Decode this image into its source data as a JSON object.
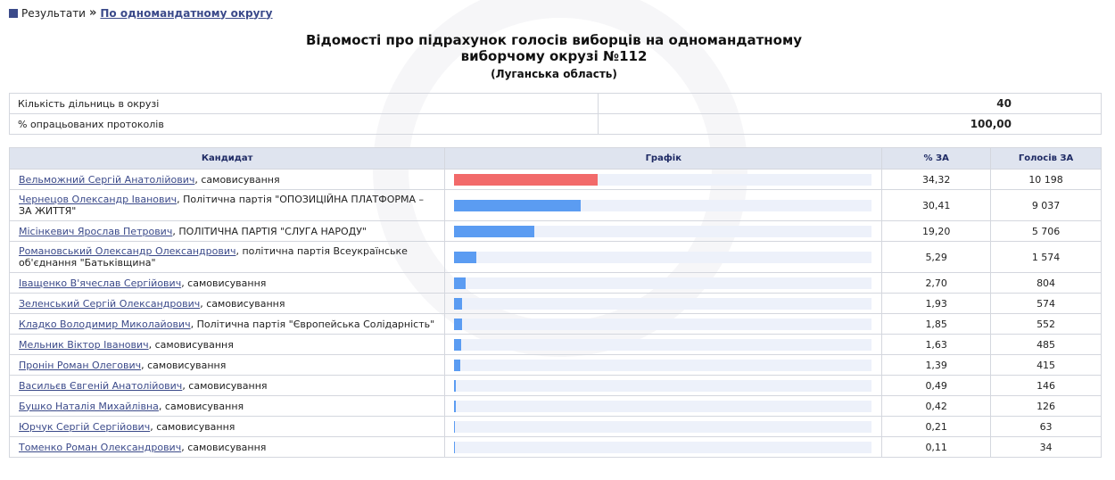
{
  "breadcrumb": {
    "root": "Результати",
    "separator": "»",
    "current": "По одномандатному округу"
  },
  "title_line1": "Відомості про підрахунок голосів виборців на одномандатному",
  "title_line2": "виборчому окрузі №112",
  "region": "(Луганська область)",
  "stats": [
    {
      "label": "Кількість дільниць в окрузі",
      "value": "40"
    },
    {
      "label": "% опрацьованих протоколів",
      "value": "100,00"
    }
  ],
  "columns": {
    "candidate": "Кандидат",
    "chart": "Графік",
    "percent": "% ЗА",
    "votes": "Голосів ЗА"
  },
  "colors": {
    "bar_leader": "#f26a6a",
    "bar": "#5b9cf2",
    "bar_track": "#edf1fa",
    "header_bg": "#dfe4ef"
  },
  "candidates": [
    {
      "name": "Вельможний Сергій Анатолійович",
      "party": ", самовисування",
      "percent": "34,32",
      "votes": "10 198",
      "share": 34.32
    },
    {
      "name": "Чернецов Олександр Іванович",
      "party": ", Політична партія \"ОПОЗИЦІЙНА ПЛАТФОРМА – ЗА ЖИТТЯ\"",
      "percent": "30,41",
      "votes": "9 037",
      "share": 30.41
    },
    {
      "name": "Місінкевич Ярослав Петрович",
      "party": ", ПОЛІТИЧНА ПАРТІЯ \"СЛУГА НАРОДУ\"",
      "percent": "19,20",
      "votes": "5 706",
      "share": 19.2
    },
    {
      "name": "Романовський Олександр Олександрович",
      "party": ", політична партія Всеукраїнське об'єднання \"Батьківщина\"",
      "percent": "5,29",
      "votes": "1 574",
      "share": 5.29
    },
    {
      "name": "Іващенко В'ячеслав Сергійович",
      "party": ", самовисування",
      "percent": "2,70",
      "votes": "804",
      "share": 2.7
    },
    {
      "name": "Зеленський Сергій Олександрович",
      "party": ", самовисування",
      "percent": "1,93",
      "votes": "574",
      "share": 1.93
    },
    {
      "name": "Кладко Володимир Миколайович",
      "party": ", Політична партія \"Європейська Солідарність\"",
      "percent": "1,85",
      "votes": "552",
      "share": 1.85
    },
    {
      "name": "Мельник Віктор Іванович",
      "party": ", самовисування",
      "percent": "1,63",
      "votes": "485",
      "share": 1.63
    },
    {
      "name": "Пронін Роман Олегович",
      "party": ", самовисування",
      "percent": "1,39",
      "votes": "415",
      "share": 1.39
    },
    {
      "name": "Васильєв Євгеній Анатолійович",
      "party": ", самовисування",
      "percent": "0,49",
      "votes": "146",
      "share": 0.49
    },
    {
      "name": "Бушко Наталія Михайлівна",
      "party": ", самовисування",
      "percent": "0,42",
      "votes": "126",
      "share": 0.42
    },
    {
      "name": "Юрчук Сергій Сергійович",
      "party": ", самовисування",
      "percent": "0,21",
      "votes": "63",
      "share": 0.21
    },
    {
      "name": "Томенко Роман Олександрович",
      "party": ", самовисування",
      "percent": "0,11",
      "votes": "34",
      "share": 0.11
    }
  ]
}
